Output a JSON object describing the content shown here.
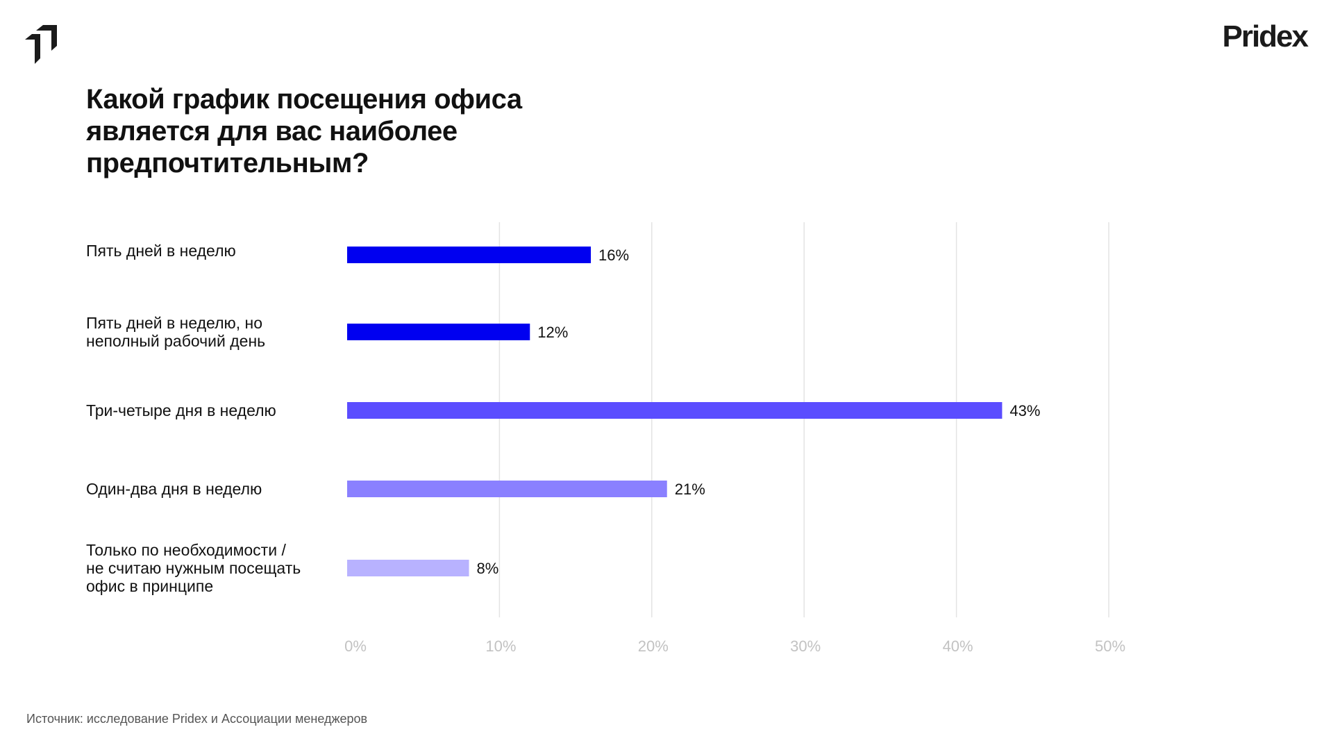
{
  "brand": {
    "name": "Pridex"
  },
  "title_lines": [
    "Какой график посещения офиса",
    "является для вас наиболее",
    "предпочтительным?"
  ],
  "source": "Источник: исследование Pridex и Ассоциации менеджеров",
  "chart_data": {
    "type": "bar",
    "orientation": "horizontal",
    "title": "Какой график посещения офиса является для вас наиболее предпочтительным?",
    "categories": [
      [
        "Пять дней в неделю"
      ],
      [
        "Пять дней в неделю, но",
        "неполный рабочий день"
      ],
      [
        "Три-четыре дня в неделю"
      ],
      [
        "Один-два дня в неделю"
      ],
      [
        "Только по необходимости /",
        "не считаю нужным посещать",
        "офис в принципе"
      ]
    ],
    "values": [
      16,
      12,
      43,
      21,
      8
    ],
    "value_labels": [
      "16%",
      "12%",
      "43%",
      "21%",
      "8%"
    ],
    "colors": [
      "#0000f0",
      "#0000f0",
      "#5b4dff",
      "#8a80ff",
      "#b8b2ff"
    ],
    "xlim": [
      0,
      50
    ],
    "x_ticks": [
      0,
      10,
      20,
      30,
      40,
      50
    ],
    "x_tick_labels": [
      "0%",
      "10%",
      "20%",
      "30%",
      "40%",
      "50%"
    ],
    "grid": true,
    "xlabel": "",
    "ylabel": ""
  }
}
